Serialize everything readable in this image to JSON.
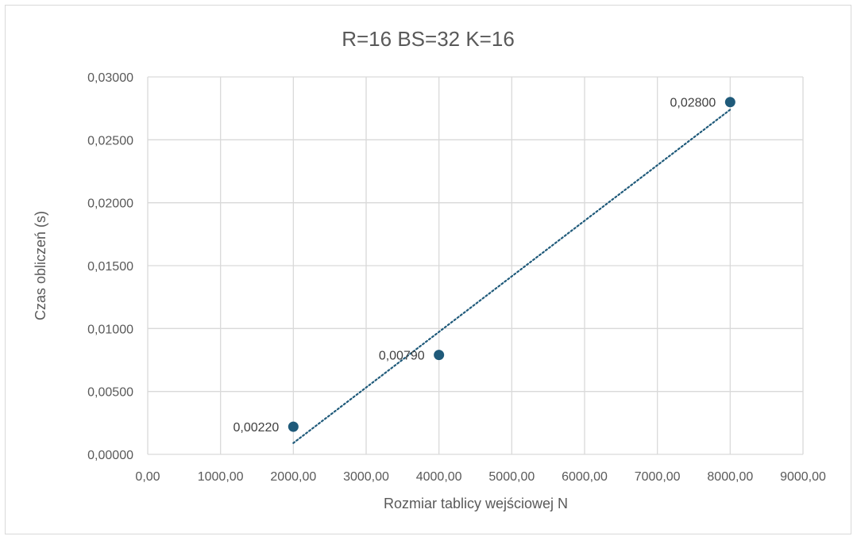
{
  "chart_data": {
    "type": "scatter",
    "title": "R=16 BS=32 K=16",
    "xlabel": "Rozmiar tablicy wejściowej N",
    "ylabel": "Czas obliczeń (s)",
    "xlim": [
      0,
      9000
    ],
    "ylim": [
      0,
      0.03
    ],
    "x_ticks": [
      "0,00",
      "1000,00",
      "2000,00",
      "3000,00",
      "4000,00",
      "5000,00",
      "6000,00",
      "7000,00",
      "8000,00",
      "9000,00"
    ],
    "y_ticks": [
      "0,00000",
      "0,00500",
      "0,01000",
      "0,01500",
      "0,02000",
      "0,02500",
      "0,03000"
    ],
    "grid": true,
    "series": [
      {
        "x": [
          2000,
          4000,
          8000
        ],
        "y": [
          0.0022,
          0.0079,
          0.028
        ],
        "labels": [
          "0,00220",
          "0,00790",
          "0,02800"
        ],
        "color": "#1f5a7a"
      }
    ],
    "trendline": {
      "type": "linear",
      "style": "dotted",
      "from": [
        2000,
        0.0009
      ],
      "to": [
        8000,
        0.0274
      ],
      "color": "#1f5a7a"
    }
  }
}
